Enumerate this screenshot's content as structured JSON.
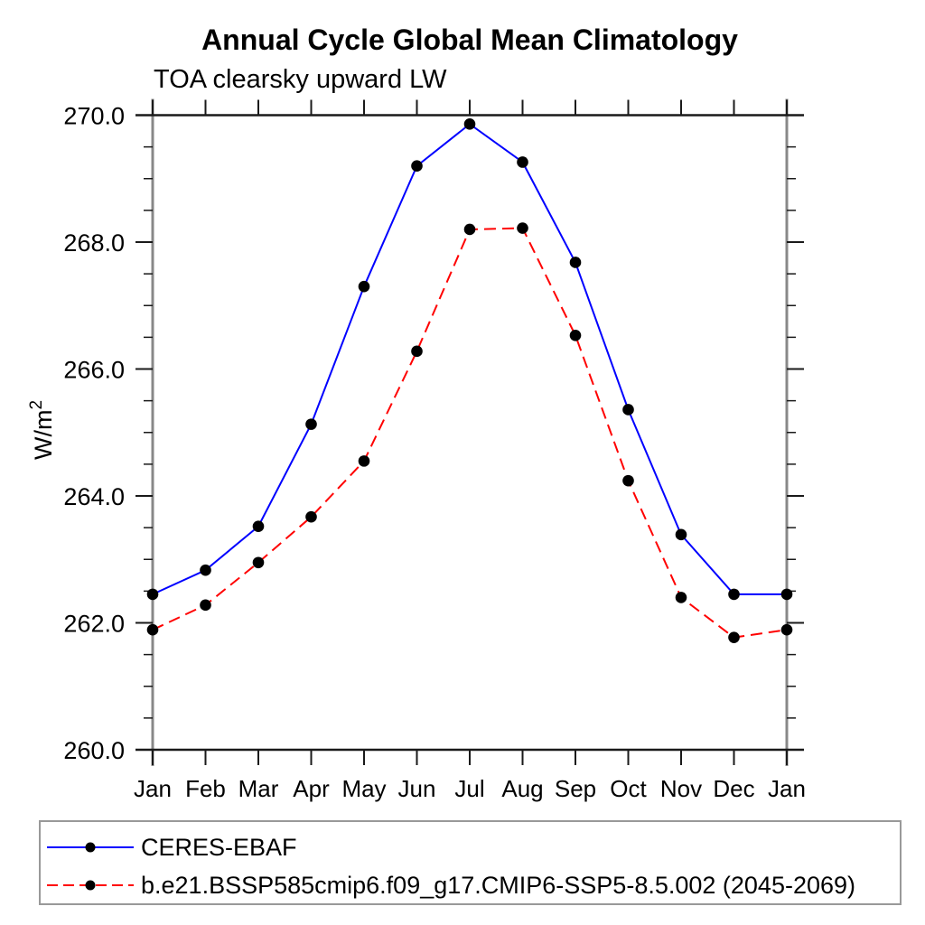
{
  "colors": {
    "background": "#ffffff",
    "frame_horizontal": "#1a1a1a",
    "frame_vertical": "#888888",
    "tick": "#1a1a1a",
    "text": "#000000",
    "legend_border": "#999999"
  },
  "chart_data": {
    "type": "line",
    "title": "Annual Cycle Global Mean Climatology",
    "subtitle": "TOA clearsky upward LW",
    "ylabel": "W/m²",
    "x_categories": [
      "Jan",
      "Feb",
      "Mar",
      "Apr",
      "May",
      "Jun",
      "Jul",
      "Aug",
      "Sep",
      "Oct",
      "Nov",
      "Dec",
      "Jan"
    ],
    "ylim": [
      260.0,
      270.0
    ],
    "ytick_labels": [
      "260.0",
      "262.0",
      "264.0",
      "266.0",
      "268.0",
      "270.0"
    ],
    "ytick_major_step": 2.0,
    "ytick_minor_step": 0.5,
    "grid": false,
    "legend_position": "bottom-left",
    "series": [
      {
        "name": "CERES-EBAF",
        "color": "#0000ff",
        "line_style": "solid",
        "marker": "circle",
        "marker_color": "#000000",
        "values": [
          262.45,
          262.83,
          263.52,
          265.13,
          267.3,
          269.2,
          269.86,
          269.26,
          267.68,
          265.36,
          263.39,
          262.45,
          262.45
        ]
      },
      {
        "name": "b.e21.BSSP585cmip6.f09_g17.CMIP6-SSP5-8.5.002 (2045-2069)",
        "color": "#ff0000",
        "line_style": "dashed",
        "marker": "circle",
        "marker_color": "#000000",
        "values": [
          261.89,
          262.28,
          262.95,
          263.67,
          264.55,
          266.28,
          268.2,
          268.22,
          266.53,
          264.24,
          262.4,
          261.77,
          261.89
        ]
      }
    ]
  }
}
